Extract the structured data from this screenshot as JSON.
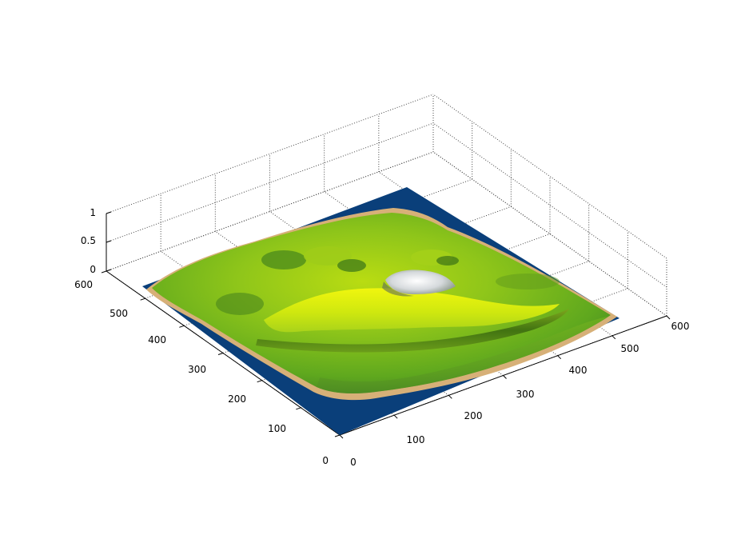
{
  "chart_data": {
    "type": "surface3d",
    "title": "",
    "xlabel": "",
    "ylabel": "",
    "zlabel": "",
    "xlim": [
      0,
      600
    ],
    "ylim": [
      0,
      600
    ],
    "zlim": [
      0,
      1
    ],
    "grid": true,
    "x_ticks": [
      "0",
      "100",
      "200",
      "300",
      "400",
      "500",
      "600"
    ],
    "y_ticks": [
      "0",
      "100",
      "200",
      "300",
      "400",
      "500",
      "600"
    ],
    "z_ticks": [
      "0",
      "0.5",
      "1"
    ],
    "colors": {
      "water": "#0a3f7a",
      "beach": "#d7b078",
      "lowland": "#4e9a22",
      "grass": "#86c81a",
      "highland": "#d6ea10",
      "peak": "#dfe3e6"
    }
  }
}
